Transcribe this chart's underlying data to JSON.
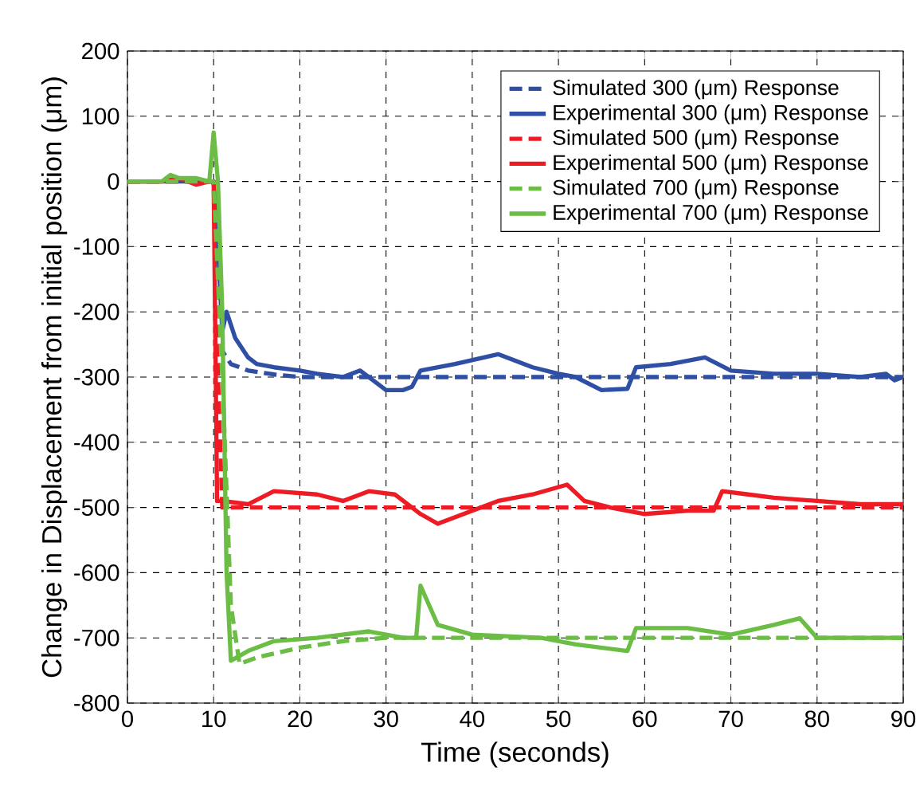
{
  "chart_data": {
    "type": "line",
    "xlabel": "Time (seconds)",
    "ylabel": "Change in Displacement from initial position (μm)",
    "xlim": [
      0,
      90
    ],
    "ylim": [
      -800,
      200
    ],
    "xticks": [
      0,
      10,
      20,
      30,
      40,
      50,
      60,
      70,
      80,
      90
    ],
    "yticks": [
      -800,
      -700,
      -600,
      -500,
      -400,
      -300,
      -200,
      -100,
      0,
      100,
      200
    ],
    "grid": true,
    "legend": "top right",
    "line_style": "solid",
    "series": [
      {
        "name": "Simulated 300 (μm) Response",
        "color": "#2e4fa3",
        "line_style": "dashed",
        "x": [
          0,
          10,
          10.5,
          11,
          12,
          14,
          17,
          20,
          30,
          90
        ],
        "values": [
          0,
          0,
          -150,
          -260,
          -280,
          -290,
          -296,
          -300,
          -300,
          -300
        ]
      },
      {
        "name": "Experimental 300 (μm) Response",
        "color": "#2e4fa3",
        "x": [
          0,
          10,
          10.5,
          11,
          11.5,
          12.5,
          14,
          15,
          17,
          20,
          22,
          25,
          27,
          30,
          32,
          33,
          34,
          36,
          38,
          43,
          47,
          50,
          52,
          55,
          58,
          59,
          63,
          67,
          70,
          75,
          80,
          85,
          88,
          89,
          90
        ],
        "values": [
          0,
          0,
          -100,
          -230,
          -200,
          -240,
          -270,
          -280,
          -285,
          -290,
          -295,
          -300,
          -290,
          -320,
          -320,
          -315,
          -290,
          -285,
          -280,
          -265,
          -285,
          -295,
          -300,
          -320,
          -318,
          -285,
          -280,
          -270,
          -290,
          -295,
          -295,
          -300,
          -295,
          -305,
          -300
        ]
      },
      {
        "name": "Simulated 500 (μm) Response",
        "color": "#ed1c24",
        "line_style": "dashed",
        "x": [
          0,
          10,
          10.5,
          11,
          90
        ],
        "values": [
          0,
          0,
          -300,
          -500,
          -500
        ]
      },
      {
        "name": "Experimental 500 (μm) Response",
        "color": "#ed1c24",
        "x": [
          0,
          4,
          6,
          8,
          9.5,
          10,
          10.4,
          11,
          14,
          17,
          22,
          25,
          28,
          31,
          34,
          36,
          39,
          43,
          47,
          51,
          53,
          56,
          60,
          65,
          68,
          69,
          72,
          75,
          80,
          85,
          90
        ],
        "values": [
          0,
          0,
          5,
          -5,
          0,
          0,
          -490,
          -490,
          -495,
          -475,
          -480,
          -490,
          -475,
          -480,
          -510,
          -525,
          -510,
          -490,
          -480,
          -465,
          -490,
          -500,
          -510,
          -505,
          -505,
          -475,
          -480,
          -485,
          -490,
          -495,
          -495
        ]
      },
      {
        "name": "Simulated 700 (μm) Response",
        "color": "#6cbd45",
        "line_style": "dashed",
        "x": [
          0,
          10,
          11,
          12,
          13,
          15,
          20,
          25,
          30,
          90
        ],
        "values": [
          0,
          0,
          -300,
          -650,
          -740,
          -730,
          -715,
          -705,
          -700,
          -700
        ]
      },
      {
        "name": "Experimental 700 (μm) Response",
        "color": "#6cbd45",
        "x": [
          0,
          4,
          5,
          6,
          8,
          9.5,
          10,
          10.5,
          11,
          11.5,
          12,
          14,
          17,
          22,
          28,
          32,
          33.5,
          34,
          36,
          40,
          48,
          52,
          55,
          58,
          59,
          65,
          70,
          75,
          78,
          80,
          85,
          90
        ],
        "values": [
          0,
          0,
          10,
          5,
          5,
          0,
          75,
          0,
          -200,
          -600,
          -735,
          -720,
          -705,
          -700,
          -690,
          -700,
          -700,
          -620,
          -680,
          -695,
          -700,
          -710,
          -715,
          -720,
          -685,
          -685,
          -695,
          -680,
          -670,
          -700,
          -700,
          -700
        ]
      }
    ]
  }
}
